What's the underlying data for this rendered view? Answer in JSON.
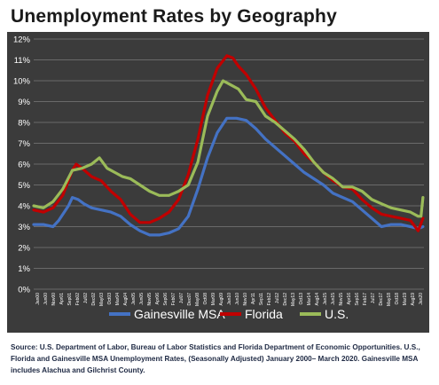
{
  "title": "Unemployment Rates by Geography",
  "source": "Source: U.S. Department of Labor, Bureau of Labor Statistics and Florida Department of Economic Opportunities. U.S., Florida and Gainesville MSA Unemployment Rates, (Seasonally Adjusted) January 2000– March  2020. Gainesville MSA includes Alachua and Gilchrist County.",
  "colors": {
    "background": "#3b3b3b",
    "gridline": "#6a6a6a",
    "axis_text": "#ffffff",
    "gainesville": "#4472c4",
    "florida": "#c00000",
    "us": "#9bbb59"
  },
  "chart_data": {
    "type": "line",
    "title": "Unemployment Rates by Geography",
    "x_range": [
      "Jan00",
      "Mar20"
    ],
    "ylim": [
      0,
      12
    ],
    "y_tick_labels": [
      "0%",
      "1%",
      "2%",
      "3%",
      "4%",
      "5%",
      "6%",
      "7%",
      "8%",
      "9%",
      "10%",
      "11%",
      "12%"
    ],
    "x_tick_labels": [
      "Jan00",
      "Jun00",
      "Nov00",
      "Apr01",
      "Sep01",
      "Feb02",
      "Jul02",
      "Dec02",
      "May03",
      "Oct03",
      "Mar04",
      "Aug04",
      "Jan05",
      "Jun05",
      "Nov05",
      "Apr06",
      "Sep06",
      "Feb07",
      "Jul07",
      "Dec07",
      "May08",
      "Oct08",
      "Mar09",
      "Aug09",
      "Jan10",
      "Jun10",
      "Nov10",
      "Apr11",
      "Sep11",
      "Feb12",
      "Jul12",
      "Dec12",
      "May13",
      "Oct13",
      "Mar14",
      "Aug14",
      "Jan15",
      "Jun15",
      "Nov15",
      "Apr16",
      "Sep16",
      "Feb17",
      "Jul17",
      "Dec17",
      "May18",
      "Oct18",
      "Mar19",
      "Aug19",
      "Jan20"
    ],
    "grid": true,
    "legend_position": "bottom",
    "x_note": "x = years since Jan 2000 (decimal)",
    "series": [
      {
        "name": "Gainesville MSA",
        "color": "#4472c4",
        "points": [
          [
            0,
            3.1
          ],
          [
            0.5,
            3.1
          ],
          [
            1,
            3.0
          ],
          [
            1.3,
            3.3
          ],
          [
            1.8,
            4.0
          ],
          [
            2.0,
            4.4
          ],
          [
            2.3,
            4.3
          ],
          [
            2.6,
            4.1
          ],
          [
            3.0,
            3.9
          ],
          [
            3.5,
            3.8
          ],
          [
            4.0,
            3.7
          ],
          [
            4.5,
            3.5
          ],
          [
            5.0,
            3.1
          ],
          [
            5.5,
            2.8
          ],
          [
            6.0,
            2.6
          ],
          [
            6.5,
            2.6
          ],
          [
            7.0,
            2.7
          ],
          [
            7.5,
            2.9
          ],
          [
            8.0,
            3.5
          ],
          [
            8.5,
            4.8
          ],
          [
            9.0,
            6.3
          ],
          [
            9.5,
            7.5
          ],
          [
            10.0,
            8.2
          ],
          [
            10.5,
            8.2
          ],
          [
            11.0,
            8.1
          ],
          [
            11.5,
            7.7
          ],
          [
            12.0,
            7.2
          ],
          [
            12.5,
            6.8
          ],
          [
            13.0,
            6.4
          ],
          [
            13.5,
            6.0
          ],
          [
            14.0,
            5.6
          ],
          [
            14.5,
            5.3
          ],
          [
            15.0,
            5.0
          ],
          [
            15.5,
            4.6
          ],
          [
            16.0,
            4.4
          ],
          [
            16.5,
            4.2
          ],
          [
            17.0,
            3.8
          ],
          [
            17.5,
            3.4
          ],
          [
            18.0,
            3.0
          ],
          [
            18.5,
            3.1
          ],
          [
            19.0,
            3.1
          ],
          [
            19.5,
            3.0
          ],
          [
            19.9,
            2.9
          ],
          [
            20.15,
            3.0
          ]
        ]
      },
      {
        "name": "Florida",
        "color": "#c00000",
        "points": [
          [
            0,
            3.8
          ],
          [
            0.5,
            3.7
          ],
          [
            1,
            3.9
          ],
          [
            1.5,
            4.5
          ],
          [
            2.0,
            5.7
          ],
          [
            2.2,
            6.0
          ],
          [
            2.5,
            5.8
          ],
          [
            3.0,
            5.4
          ],
          [
            3.5,
            5.2
          ],
          [
            4.0,
            4.7
          ],
          [
            4.5,
            4.3
          ],
          [
            5.0,
            3.6
          ],
          [
            5.5,
            3.2
          ],
          [
            6.0,
            3.2
          ],
          [
            6.5,
            3.4
          ],
          [
            7.0,
            3.7
          ],
          [
            7.5,
            4.3
          ],
          [
            8.0,
            5.5
          ],
          [
            8.5,
            7.2
          ],
          [
            9.0,
            9.3
          ],
          [
            9.5,
            10.6
          ],
          [
            10.0,
            11.2
          ],
          [
            10.3,
            11.1
          ],
          [
            10.6,
            10.7
          ],
          [
            11.0,
            10.3
          ],
          [
            11.5,
            9.6
          ],
          [
            12.0,
            8.7
          ],
          [
            12.5,
            8.1
          ],
          [
            13.0,
            7.5
          ],
          [
            13.5,
            7.1
          ],
          [
            14.0,
            6.5
          ],
          [
            14.5,
            6.1
          ],
          [
            15.0,
            5.6
          ],
          [
            15.5,
            5.2
          ],
          [
            16.0,
            4.9
          ],
          [
            16.5,
            4.8
          ],
          [
            17.0,
            4.3
          ],
          [
            17.5,
            3.9
          ],
          [
            18.0,
            3.6
          ],
          [
            18.5,
            3.5
          ],
          [
            19.0,
            3.4
          ],
          [
            19.5,
            3.3
          ],
          [
            19.9,
            2.8
          ],
          [
            20.15,
            3.4
          ]
        ]
      },
      {
        "name": "U.S.",
        "color": "#9bbb59",
        "points": [
          [
            0,
            4.0
          ],
          [
            0.5,
            3.9
          ],
          [
            1,
            4.2
          ],
          [
            1.5,
            4.8
          ],
          [
            2.0,
            5.7
          ],
          [
            2.5,
            5.8
          ],
          [
            3.0,
            6.0
          ],
          [
            3.4,
            6.3
          ],
          [
            3.8,
            5.8
          ],
          [
            4.2,
            5.6
          ],
          [
            4.6,
            5.4
          ],
          [
            5.0,
            5.3
          ],
          [
            5.5,
            5.0
          ],
          [
            6.0,
            4.7
          ],
          [
            6.5,
            4.5
          ],
          [
            7.0,
            4.5
          ],
          [
            7.5,
            4.7
          ],
          [
            8.0,
            5.0
          ],
          [
            8.5,
            6.1
          ],
          [
            9.0,
            8.3
          ],
          [
            9.5,
            9.5
          ],
          [
            9.8,
            10.0
          ],
          [
            10.2,
            9.8
          ],
          [
            10.6,
            9.6
          ],
          [
            11.0,
            9.1
          ],
          [
            11.5,
            9.0
          ],
          [
            12.0,
            8.3
          ],
          [
            12.5,
            8.0
          ],
          [
            13.0,
            7.6
          ],
          [
            13.5,
            7.2
          ],
          [
            14.0,
            6.7
          ],
          [
            14.5,
            6.1
          ],
          [
            15.0,
            5.6
          ],
          [
            15.5,
            5.3
          ],
          [
            16.0,
            4.9
          ],
          [
            16.5,
            4.9
          ],
          [
            17.0,
            4.7
          ],
          [
            17.5,
            4.3
          ],
          [
            18.0,
            4.1
          ],
          [
            18.5,
            3.9
          ],
          [
            19.0,
            3.8
          ],
          [
            19.5,
            3.7
          ],
          [
            19.9,
            3.5
          ],
          [
            20.05,
            3.5
          ],
          [
            20.15,
            4.4
          ]
        ]
      }
    ]
  }
}
